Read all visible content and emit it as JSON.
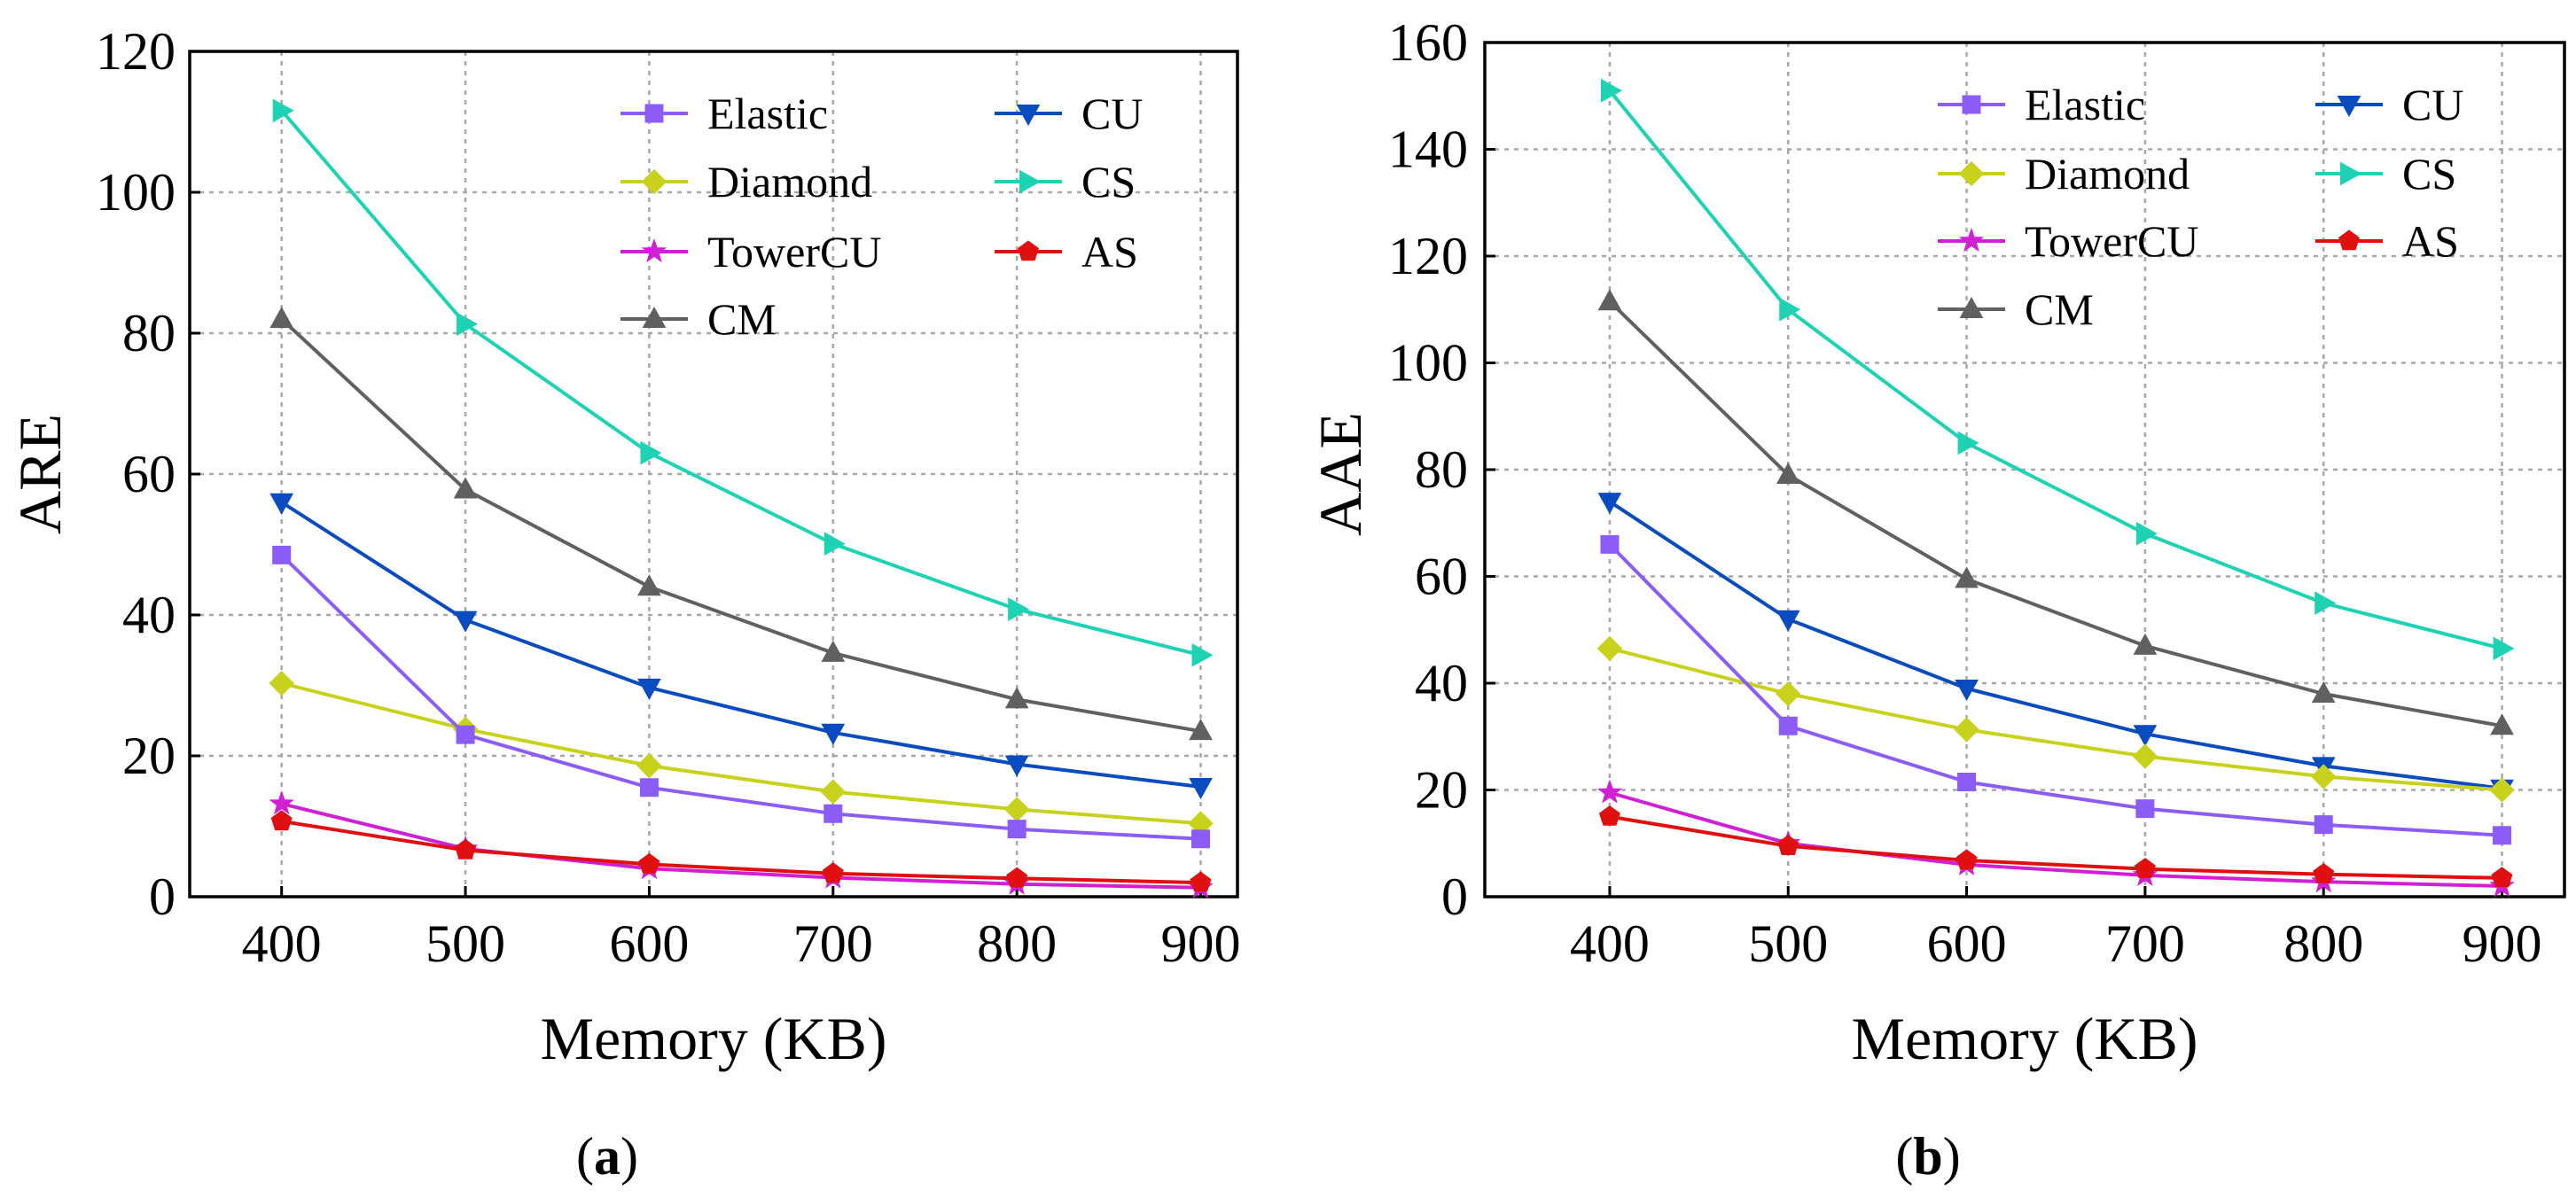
{
  "figure": {
    "panels": [
      {
        "label_open": "(",
        "label_letter": "a",
        "label_close": ")"
      },
      {
        "label_open": "(",
        "label_letter": "b",
        "label_close": ")"
      }
    ]
  },
  "chart_data": [
    {
      "type": "line",
      "panel": "a",
      "title": "",
      "xlabel": "Memory (KB)",
      "ylabel": "ARE",
      "x": [
        400,
        500,
        600,
        700,
        800,
        900
      ],
      "xticks": [
        400,
        500,
        600,
        700,
        800,
        900
      ],
      "xlim": [
        350,
        920
      ],
      "ylim": [
        0,
        120
      ],
      "yticks": [
        0,
        20,
        40,
        60,
        80,
        100,
        120
      ],
      "grid": true,
      "legend_position": "top-right",
      "series": [
        {
          "name": "Elastic",
          "color": "#8b5cf6",
          "marker": "square",
          "values": [
            48.5,
            23.0,
            15.5,
            11.8,
            9.6,
            8.2
          ]
        },
        {
          "name": "CU",
          "color": "#0a4bbf",
          "marker": "triangle-down",
          "values": [
            56.0,
            39.3,
            29.7,
            23.3,
            18.8,
            15.6
          ]
        },
        {
          "name": "Diamond",
          "color": "#c8d21c",
          "marker": "diamond",
          "values": [
            30.3,
            23.8,
            18.6,
            14.9,
            12.4,
            10.4
          ]
        },
        {
          "name": "CS",
          "color": "#1ed2b4",
          "marker": "triangle-right",
          "values": [
            111.6,
            81.3,
            63.0,
            50.1,
            40.8,
            34.3
          ]
        },
        {
          "name": "TowerCU",
          "color": "#d020d4",
          "marker": "star",
          "values": [
            13.2,
            6.8,
            4.0,
            2.7,
            1.8,
            1.3
          ]
        },
        {
          "name": "AS",
          "color": "#e01010",
          "marker": "pentagon",
          "values": [
            10.7,
            6.6,
            4.6,
            3.3,
            2.6,
            2.0
          ]
        },
        {
          "name": "CM",
          "color": "#606060",
          "marker": "triangle-up",
          "values": [
            82.0,
            57.8,
            44.0,
            34.6,
            28.0,
            23.5
          ]
        }
      ]
    },
    {
      "type": "line",
      "panel": "b",
      "title": "",
      "xlabel": "Memory (KB)",
      "ylabel": "AAE",
      "x": [
        400,
        500,
        600,
        700,
        800,
        900
      ],
      "xticks": [
        400,
        500,
        600,
        700,
        800,
        900
      ],
      "xlim": [
        330,
        935
      ],
      "ylim": [
        0,
        160
      ],
      "yticks": [
        0,
        20,
        40,
        60,
        80,
        100,
        120,
        140,
        160
      ],
      "grid": true,
      "legend_position": "top-right",
      "series": [
        {
          "name": "Elastic",
          "color": "#8b5cf6",
          "marker": "square",
          "values": [
            66.0,
            32.0,
            21.5,
            16.5,
            13.5,
            11.5
          ]
        },
        {
          "name": "CU",
          "color": "#0a4bbf",
          "marker": "triangle-down",
          "values": [
            74.0,
            52.0,
            39.0,
            30.5,
            24.5,
            20.3
          ]
        },
        {
          "name": "Diamond",
          "color": "#c8d21c",
          "marker": "diamond",
          "values": [
            46.5,
            38.0,
            31.3,
            26.3,
            22.5,
            20.0
          ]
        },
        {
          "name": "CS",
          "color": "#1ed2b4",
          "marker": "triangle-right",
          "values": [
            151.0,
            110.0,
            85.0,
            68.0,
            55.0,
            46.5
          ]
        },
        {
          "name": "TowerCU",
          "color": "#d020d4",
          "marker": "star",
          "values": [
            19.5,
            10.0,
            6.0,
            4.0,
            2.8,
            2.0
          ]
        },
        {
          "name": "AS",
          "color": "#e01010",
          "marker": "pentagon",
          "values": [
            15.0,
            9.5,
            6.8,
            5.2,
            4.2,
            3.5
          ]
        },
        {
          "name": "CM",
          "color": "#606060",
          "marker": "triangle-up",
          "values": [
            111.5,
            79.0,
            59.5,
            47.0,
            38.0,
            32.0
          ]
        }
      ]
    }
  ]
}
